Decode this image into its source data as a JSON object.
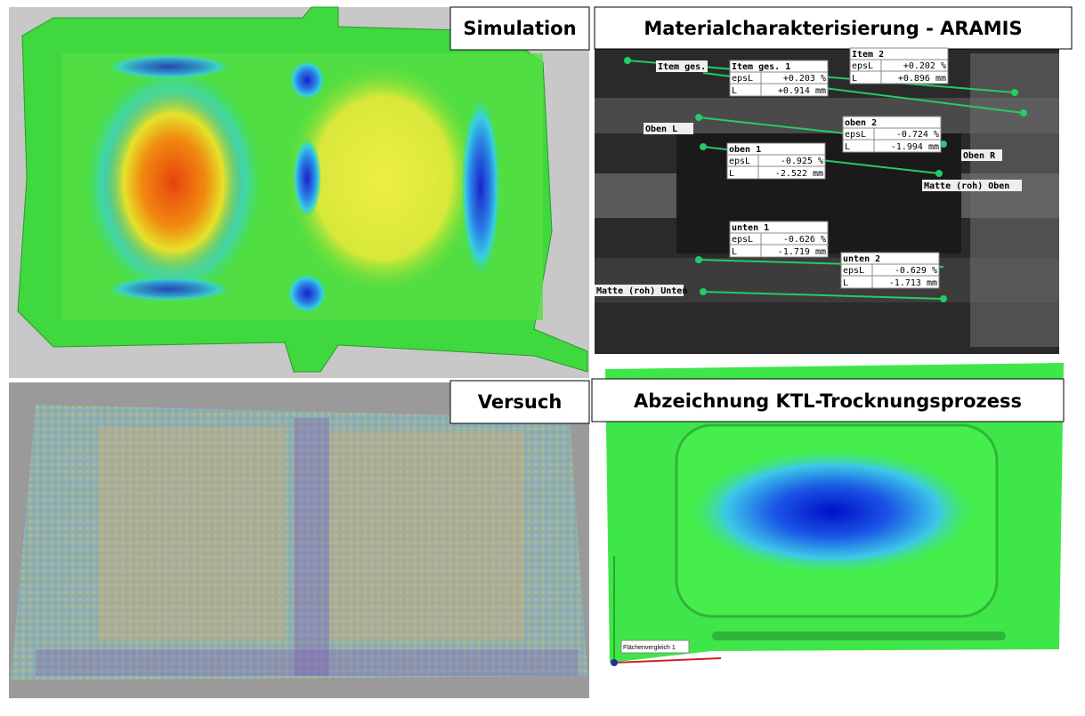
{
  "panels": {
    "simulation": "Simulation",
    "aramis": "Materialcharakterisierung - ARAMIS",
    "versuch": "Versuch",
    "ktl": "Abzeichnung KTL-Trocknungsprozess"
  },
  "aramis": {
    "measurements": [
      {
        "name": "Item ges. 1",
        "epsL_label": "epsL",
        "epsL": "+0.203 %",
        "L_label": "L",
        "L": "+0.914 mm"
      },
      {
        "name": "Item 2",
        "epsL_label": "epsL",
        "epsL": "+0.202 %",
        "L_label": "L",
        "L": "+0.896 mm"
      },
      {
        "name": "oben 2",
        "epsL_label": "epsL",
        "epsL": "-0.724 %",
        "L_label": "L",
        "L": "-1.994 mm"
      },
      {
        "name": "oben 1",
        "epsL_label": "epsL",
        "epsL": "-0.925 %",
        "L_label": "L",
        "L": "-2.522 mm"
      },
      {
        "name": "unten 1",
        "epsL_label": "epsL",
        "epsL": "-0.626 %",
        "L_label": "L",
        "L": "-1.719 mm"
      },
      {
        "name": "unten 2",
        "epsL_label": "epsL",
        "epsL": "-0.629 %",
        "L_label": "L",
        "L": "-1.713 mm"
      }
    ],
    "labels": [
      "Item ges.",
      "Oben L",
      "Oben R",
      "Matte (roh) Oben",
      "Matte (roh) Unten"
    ]
  },
  "ktl": {
    "legend": "Flächenvergleich 1"
  }
}
